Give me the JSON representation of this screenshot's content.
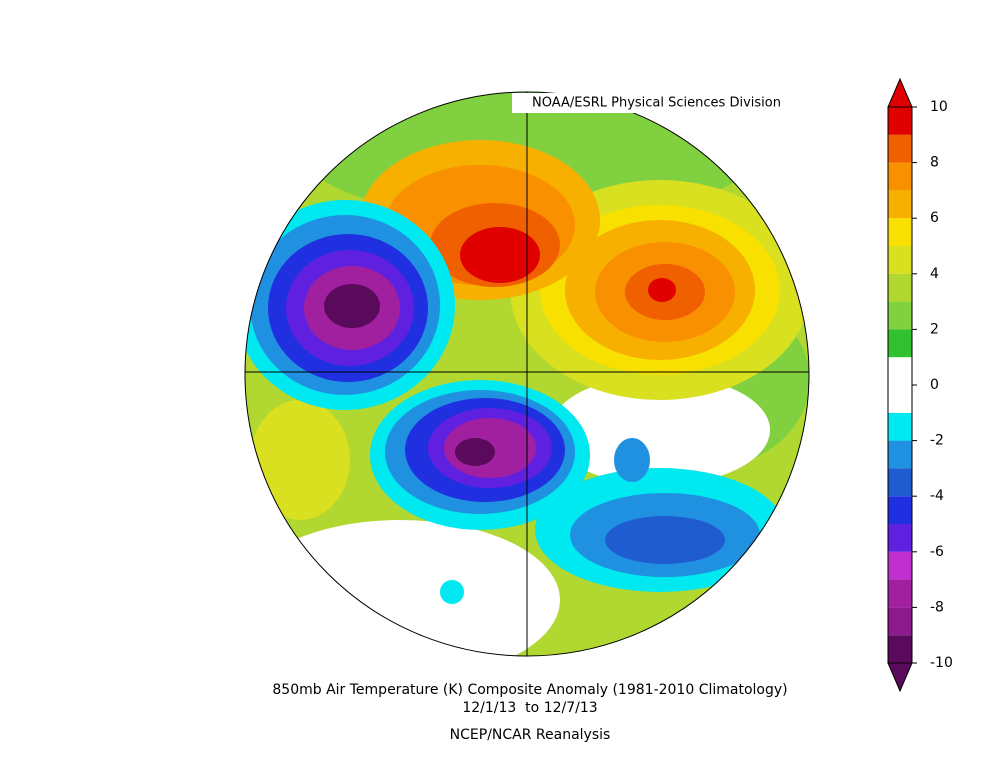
{
  "header": {
    "title": "NOAA/ESRL Physical Sciences Division"
  },
  "caption": {
    "line1": "850mb Air Temperature (K) Composite Anomaly (1981-2010 Climatology)",
    "line2": "12/1/13  to 12/7/13",
    "line3": "NCEP/NCAR Reanalysis"
  },
  "colorbar": {
    "lim": [
      -10,
      10
    ],
    "ticks": [
      -10,
      -8,
      -6,
      -4,
      -2,
      0,
      2,
      4,
      6,
      8,
      10
    ],
    "bins": [
      -10,
      -9,
      -8,
      -7,
      -6,
      -5,
      -4,
      -3,
      -2,
      -1,
      0,
      1,
      2,
      3,
      4,
      5,
      6,
      7,
      8,
      9,
      10
    ],
    "colors": [
      "#5a0a5a",
      "#8c1a8c",
      "#a020a0",
      "#c030d0",
      "#6020e0",
      "#2030e0",
      "#1e5cd0",
      "#2090e0",
      "#00e8f0",
      "#ffffff",
      "#ffffff",
      "#30c030",
      "#80d040",
      "#b0d830",
      "#d8e020",
      "#f8e000",
      "#f8b000",
      "#f89000",
      "#f06000",
      "#e00000"
    ]
  }
}
